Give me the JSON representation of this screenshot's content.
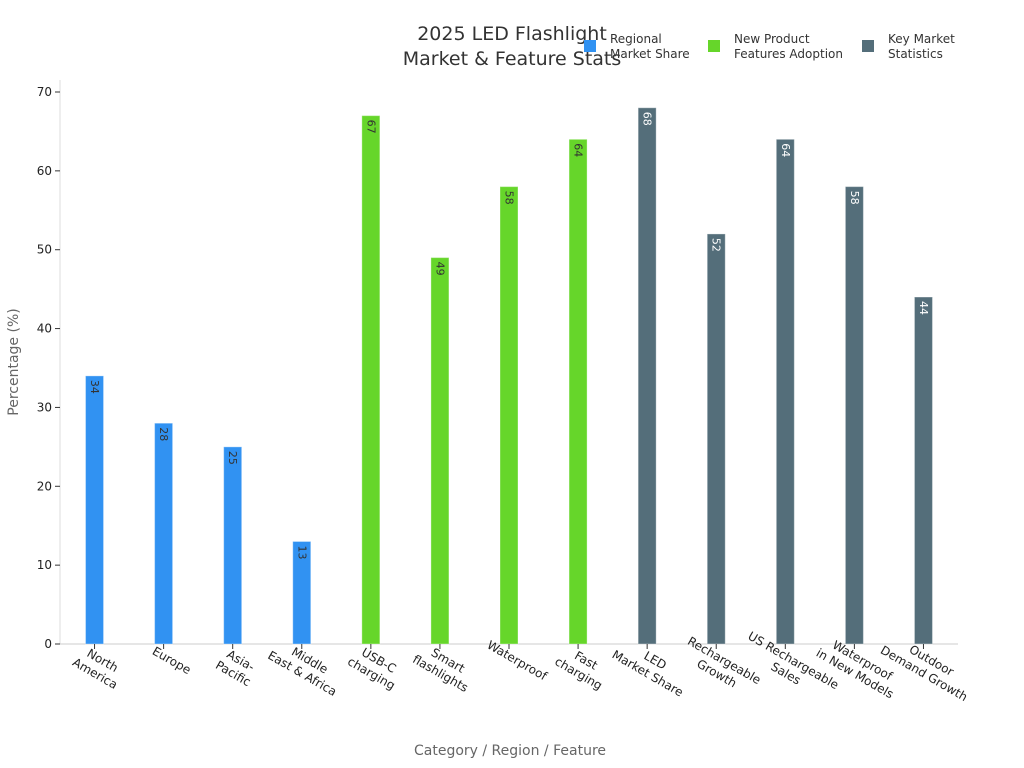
{
  "chart_data": {
    "type": "bar",
    "title_lines": [
      "2025 LED Flashlight",
      "Market & Feature Stats"
    ],
    "xlabel": "Category / Region / Feature",
    "ylabel": "Percentage (%)",
    "ylim": [
      0,
      70
    ],
    "yticks": [
      0,
      10,
      20,
      30,
      40,
      50,
      60,
      70
    ],
    "grid": false,
    "legend_position": "top-right",
    "categories": [
      [
        "North",
        "America"
      ],
      [
        "Europe"
      ],
      [
        "Asia-",
        "Pacific"
      ],
      [
        "Middle",
        "East & Africa"
      ],
      [
        "USB-C",
        "charging"
      ],
      [
        "Smart",
        "flashlights"
      ],
      [
        "Waterproof"
      ],
      [
        "Fast",
        "charging"
      ],
      [
        "LED",
        "Market Share"
      ],
      [
        "Rechargeable",
        "Growth"
      ],
      [
        "US Rechargeable",
        "Sales"
      ],
      [
        "Waterproof",
        "in New Models"
      ],
      [
        "Outdoor",
        "Demand Growth"
      ]
    ],
    "series": [
      {
        "name_lines": [
          "Regional",
          "Market Share"
        ],
        "color": "#3192f2",
        "label_color": "#333333",
        "values": [
          34,
          28,
          25,
          13,
          null,
          null,
          null,
          null,
          null,
          null,
          null,
          null,
          null
        ]
      },
      {
        "name_lines": [
          "New Product",
          "Features Adoption"
        ],
        "color": "#66d62a",
        "label_color": "#333333",
        "values": [
          null,
          null,
          null,
          null,
          67,
          49,
          58,
          64,
          null,
          null,
          null,
          null,
          null
        ]
      },
      {
        "name_lines": [
          "Key Market",
          "Statistics"
        ],
        "color": "#546e7a",
        "label_color": "#ffffff",
        "values": [
          null,
          null,
          null,
          null,
          null,
          null,
          null,
          null,
          68,
          52,
          64,
          58,
          44
        ]
      }
    ]
  }
}
